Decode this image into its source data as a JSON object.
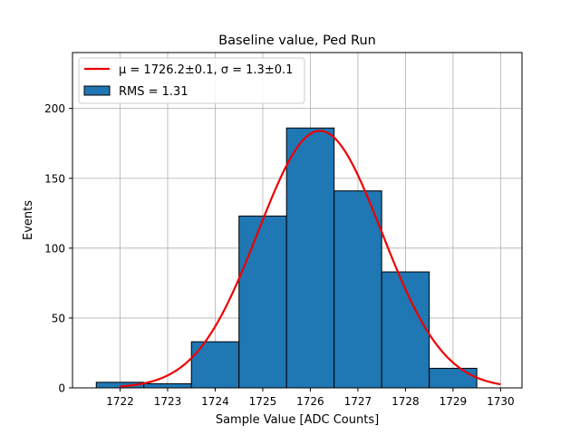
{
  "chart_data": {
    "type": "bar",
    "title": "Baseline value, Ped Run",
    "xlabel": "Sample Value [ADC Counts]",
    "ylabel": "Events",
    "xlim": [
      1721.0,
      1730.45
    ],
    "ylim": [
      0,
      240
    ],
    "xticks": [
      1722,
      1723,
      1724,
      1725,
      1726,
      1727,
      1728,
      1729,
      1730
    ],
    "yticks": [
      0,
      50,
      100,
      150,
      200
    ],
    "grid": true,
    "legend_position": "upper left",
    "colors": {
      "bars": "#1f77b4",
      "bar_edge": "#000000",
      "fit": "#ee0000"
    },
    "histogram": {
      "name": "RMS = 1.31",
      "bins": [
        {
          "x_low": 1721.5,
          "x_high": 1722.5,
          "value": 4
        },
        {
          "x_low": 1722.5,
          "x_high": 1723.5,
          "value": 3
        },
        {
          "x_low": 1723.5,
          "x_high": 1724.5,
          "value": 33
        },
        {
          "x_low": 1724.5,
          "x_high": 1725.5,
          "value": 123
        },
        {
          "x_low": 1725.5,
          "x_high": 1726.5,
          "value": 186
        },
        {
          "x_low": 1726.5,
          "x_high": 1727.5,
          "value": 141
        },
        {
          "x_low": 1727.5,
          "x_high": 1728.5,
          "value": 83
        },
        {
          "x_low": 1728.5,
          "x_high": 1729.5,
          "value": 14
        }
      ]
    },
    "fit": {
      "type": "gaussian",
      "mu": 1726.2,
      "sigma": 1.3,
      "amplitude": 184,
      "x_range": [
        1722,
        1730
      ],
      "legend_label": "μ = 1726.2±0.1, σ = 1.3±0.1"
    },
    "legend": [
      {
        "kind": "line",
        "label": "μ = 1726.2±0.1, σ = 1.3±0.1"
      },
      {
        "kind": "patch",
        "label": "RMS = 1.31"
      }
    ]
  }
}
